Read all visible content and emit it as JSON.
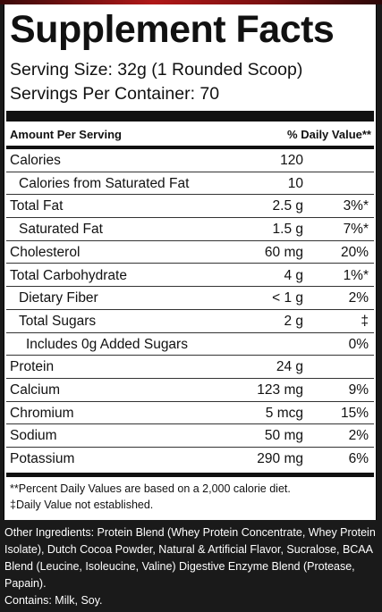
{
  "label": {
    "title": "Supplement Facts",
    "serving_size": "Serving Size: 32g (1 Rounded Scoop)",
    "servings_per_container": "Servings Per Container: 70",
    "header_amount": "Amount Per Serving",
    "header_dv": "% Daily Value**",
    "rows": [
      {
        "name": "Calories",
        "amount": "120",
        "dv": ""
      },
      {
        "name": "Calories from Saturated Fat",
        "amount": "10",
        "dv": ""
      },
      {
        "name": "Total Fat",
        "amount": "2.5 g",
        "dv": "3%*"
      },
      {
        "name": "Saturated Fat",
        "amount": "1.5 g",
        "dv": "7%*"
      },
      {
        "name": "Cholesterol",
        "amount": "60 mg",
        "dv": "20%"
      },
      {
        "name": "Total Carbohydrate",
        "amount": "4 g",
        "dv": "1%*"
      },
      {
        "name": "Dietary Fiber",
        "amount": "< 1 g",
        "dv": "2%"
      },
      {
        "name": "Total Sugars",
        "amount": "2 g",
        "dv": "‡"
      },
      {
        "name": "Includes 0g Added Sugars",
        "amount": "",
        "dv": "0%"
      },
      {
        "name": "Protein",
        "amount": "24 g",
        "dv": ""
      },
      {
        "name": "Calcium",
        "amount": "123 mg",
        "dv": "9%"
      },
      {
        "name": "Chromium",
        "amount": "5 mcg",
        "dv": "15%"
      },
      {
        "name": "Sodium",
        "amount": "50 mg",
        "dv": "2%"
      },
      {
        "name": "Potassium",
        "amount": "290 mg",
        "dv": "6%"
      }
    ],
    "footnote_1": "**Percent Daily Values are based on a 2,000 calorie diet.",
    "footnote_2": "‡Daily Value not established."
  },
  "other_ingredients": "Other Ingredients: Protein Blend (Whey Protein Concentrate, Whey Protein Isolate), Dutch Cocoa Powder, Natural & Artificial Flavor, Sucralose, BCAA Blend (Leucine, Isoleucine, Valine) Digestive Enzyme Blend (Protease, Papain).",
  "contains": "Contains: Milk, Soy."
}
